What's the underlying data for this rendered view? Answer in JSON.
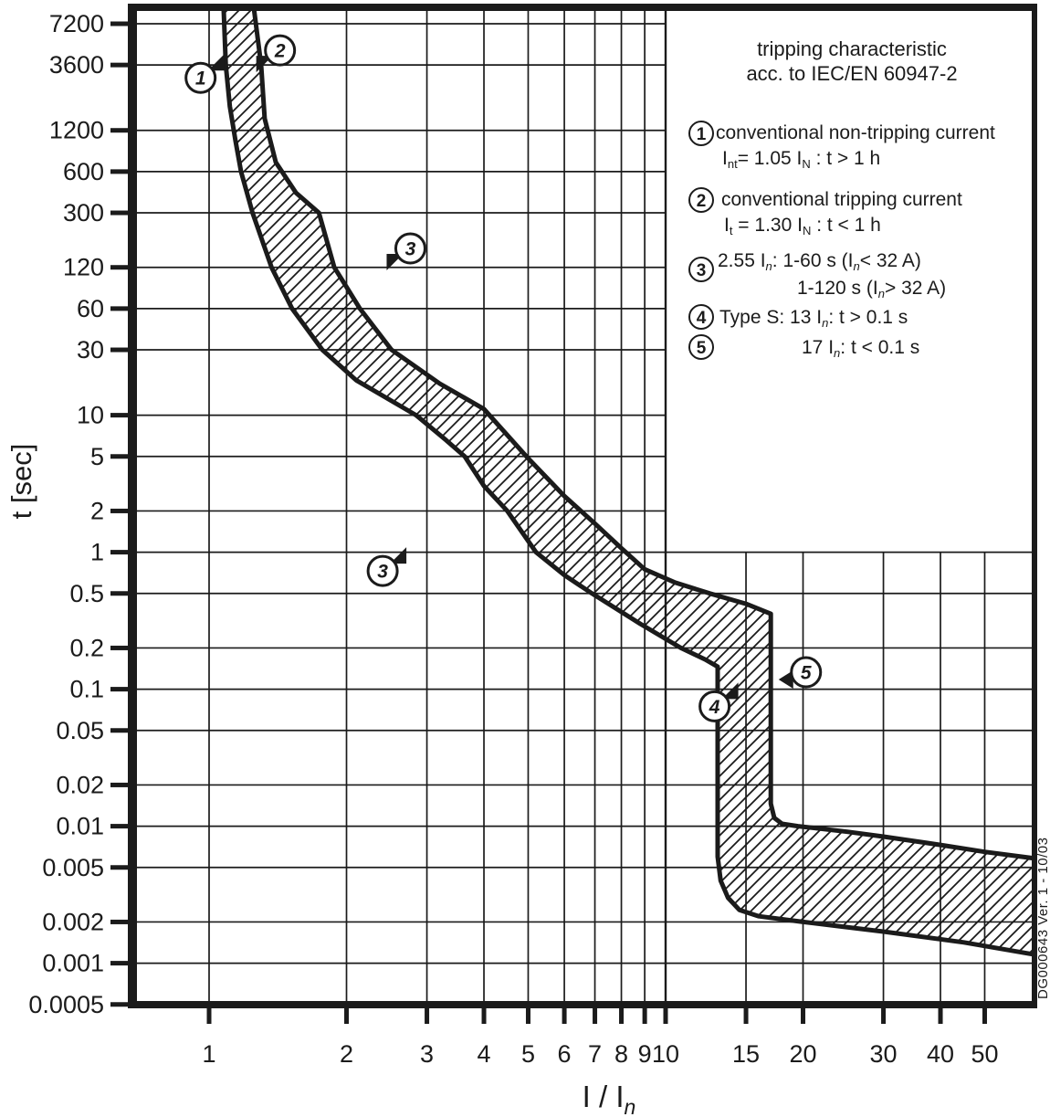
{
  "chart_data": {
    "type": "area",
    "scale": "log-log",
    "style": {
      "ink": "#1b1b1b",
      "background": "#ffffff"
    },
    "x_axis": {
      "label_segments": [
        {
          "t": "I / I"
        },
        {
          "s": "n",
          "it": true
        }
      ],
      "ticks": [
        1,
        2,
        3,
        4,
        5,
        6,
        7,
        8,
        9,
        10,
        15,
        20,
        30,
        40,
        50
      ],
      "range": [
        0.7,
        65
      ],
      "grid": true
    },
    "y_axis": {
      "label": "t [sec]",
      "ticks": [
        7200,
        3600,
        1200,
        600,
        300,
        120,
        60,
        30,
        10,
        5,
        2,
        1,
        0.5,
        0.2,
        0.1,
        0.05,
        0.02,
        0.01,
        0.005,
        0.002,
        0.001,
        0.0005
      ],
      "range": [
        0.0005,
        9400
      ],
      "grid": true
    },
    "band": {
      "name": "tripping characteristic tolerance band",
      "hatch": true,
      "lower": [
        [
          1.076,
          9400
        ],
        [
          1.088,
          3600
        ],
        [
          1.11,
          1800
        ],
        [
          1.143,
          1000
        ],
        [
          1.175,
          600
        ],
        [
          1.245,
          300
        ],
        [
          1.37,
          120
        ],
        [
          1.52,
          60
        ],
        [
          1.77,
          30
        ],
        [
          2.1,
          18
        ],
        [
          2.84,
          10
        ],
        [
          3.3,
          6.6
        ],
        [
          3.63,
          5
        ],
        [
          4.0,
          3.05
        ],
        [
          4.5,
          2
        ],
        [
          5.2,
          1
        ],
        [
          6.0,
          0.68
        ],
        [
          6.9,
          0.5
        ],
        [
          8.8,
          0.3
        ],
        [
          10.8,
          0.2
        ],
        [
          12.2,
          0.165
        ],
        [
          13,
          0.146
        ],
        [
          13,
          0.006
        ],
        [
          13.2,
          0.004
        ],
        [
          13.7,
          0.003
        ],
        [
          14.5,
          0.00245
        ],
        [
          16,
          0.0022
        ],
        [
          20,
          0.002
        ],
        [
          30,
          0.0017
        ],
        [
          45,
          0.00142
        ],
        [
          64.9,
          0.00115
        ]
      ],
      "upper": [
        [
          1.253,
          9400
        ],
        [
          1.3,
          3600
        ],
        [
          1.324,
          1460
        ],
        [
          1.4,
          700
        ],
        [
          1.55,
          420
        ],
        [
          1.74,
          300
        ],
        [
          1.88,
          120
        ],
        [
          2.14,
          60
        ],
        [
          2.51,
          30
        ],
        [
          3.2,
          17
        ],
        [
          4.0,
          11.1
        ],
        [
          5.0,
          4.84
        ],
        [
          6.0,
          2.57
        ],
        [
          7.0,
          1.62
        ],
        [
          8.0,
          1.07
        ],
        [
          9.0,
          0.75
        ],
        [
          10.5,
          0.6
        ],
        [
          12.5,
          0.5
        ],
        [
          15,
          0.42
        ],
        [
          17,
          0.355
        ],
        [
          17,
          0.0146
        ],
        [
          17.3,
          0.0115
        ],
        [
          18,
          0.0104
        ],
        [
          19.5,
          0.01
        ],
        [
          25,
          0.0091
        ],
        [
          30,
          0.0084
        ],
        [
          40,
          0.0073
        ],
        [
          50,
          0.0065
        ],
        [
          64.9,
          0.0058
        ]
      ]
    },
    "markers": [
      {
        "label": "1",
        "i": 0.958,
        "t": 2900,
        "flag": "ne"
      },
      {
        "label": "2",
        "i": 1.43,
        "t": 4600,
        "flag": "sw"
      },
      {
        "label": "3",
        "i": 2.76,
        "t": 165,
        "flag": "sw"
      },
      {
        "label": "3",
        "i": 2.4,
        "t": 0.73,
        "flag": "ne"
      },
      {
        "label": "4",
        "i": 12.8,
        "t": 0.075,
        "flag": "ne"
      },
      {
        "label": "5",
        "i": 20.3,
        "t": 0.133,
        "flag": "w"
      }
    ],
    "legend": {
      "title_lines": [
        "tripping characteristic",
        "acc. to IEC/EN 60947-2"
      ],
      "items": [
        {
          "num": "1",
          "lines": [
            [
              {
                "t": "conventional non-tripping current"
              }
            ],
            [
              {
                "t": "I"
              },
              {
                "s": "nt"
              },
              {
                "t": "= 1.05 I"
              },
              {
                "s": "N"
              },
              {
                "t": " : t > 1 h"
              }
            ]
          ]
        },
        {
          "num": "2",
          "lines": [
            [
              {
                "t": "conventional tripping current"
              }
            ],
            [
              {
                "t": "I"
              },
              {
                "s": "t"
              },
              {
                "t": " = 1.30 I"
              },
              {
                "s": "N"
              },
              {
                "t": " : t < 1 h"
              }
            ]
          ]
        },
        {
          "num": "3",
          "lines": [
            [
              {
                "t": "2.55 I"
              },
              {
                "s": "n",
                "it": true
              },
              {
                "t": ":   1-60 s (I"
              },
              {
                "s": "n",
                "it": true
              },
              {
                "t": "< 32 A)"
              }
            ],
            [
              {
                "t": "1-120 s (I"
              },
              {
                "s": "n",
                "it": true
              },
              {
                "t": "> 32 A)"
              }
            ]
          ]
        },
        {
          "num": "4",
          "lines": [
            [
              {
                "t": "Type S:   13 I"
              },
              {
                "s": "n",
                "it": true
              },
              {
                "t": ": t > 0.1 s"
              }
            ]
          ]
        },
        {
          "num": "5",
          "lines": [
            [
              {
                "t": "17 I"
              },
              {
                "s": "n",
                "it": true
              },
              {
                "t": ": t < 0.1 s"
              }
            ]
          ]
        }
      ]
    },
    "side_note": "DG000643   Ver. 1 - 10/03"
  }
}
